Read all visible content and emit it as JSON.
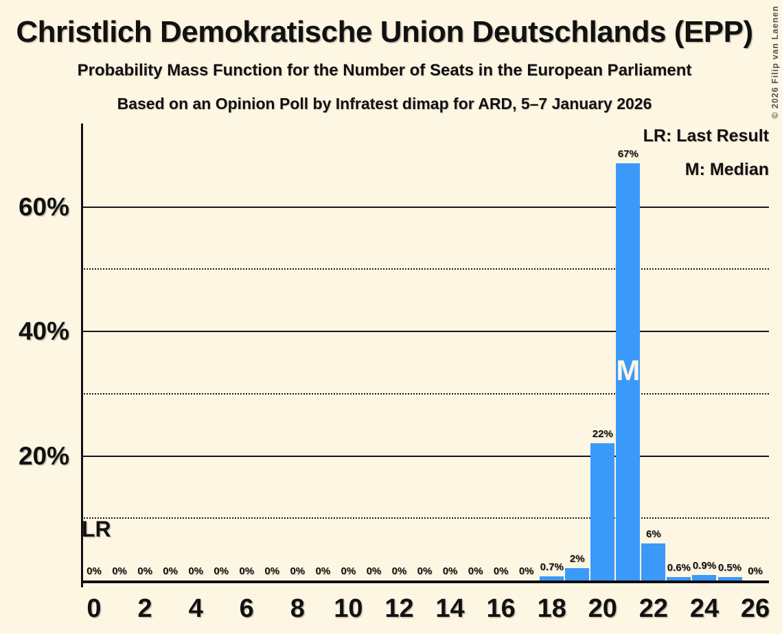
{
  "title": "Christlich Demokratische Union Deutschlands (EPP)",
  "subtitle": "Probability Mass Function for the Number of Seats in the European Parliament",
  "poll_line": "Based on an Opinion Poll by Infratest dimap for ARD, 5–7 January 2026",
  "copyright": "© 2026 Filip van Laenen",
  "legend": {
    "lr": "LR: Last Result",
    "m": "M: Median"
  },
  "lr_label": "LR",
  "median_label": "M",
  "colors": {
    "background": "#FDF6E3",
    "bar": "#3B99FA",
    "text": "#111111",
    "median_letter": "#FDF6E3",
    "copyright": "#55554a"
  },
  "chart_data": {
    "type": "bar",
    "x": [
      0,
      1,
      2,
      3,
      4,
      5,
      6,
      7,
      8,
      9,
      10,
      11,
      12,
      13,
      14,
      15,
      16,
      17,
      18,
      19,
      20,
      21,
      22,
      23,
      24,
      25,
      26
    ],
    "values": [
      0,
      0,
      0,
      0,
      0,
      0,
      0,
      0,
      0,
      0,
      0,
      0,
      0,
      0,
      0,
      0,
      0,
      0,
      0.7,
      2,
      22,
      67,
      6,
      0.6,
      0.9,
      0.5,
      0
    ],
    "labels": [
      "0%",
      "0%",
      "0%",
      "0%",
      "0%",
      "0%",
      "0%",
      "0%",
      "0%",
      "0%",
      "0%",
      "0%",
      "0%",
      "0%",
      "0%",
      "0%",
      "0%",
      "0%",
      "0.7%",
      "2%",
      "22%",
      "67%",
      "6%",
      "0.6%",
      "0.9%",
      "0.5%",
      "0%"
    ],
    "median_seat": 21,
    "x_ticks": [
      0,
      2,
      4,
      6,
      8,
      10,
      12,
      14,
      16,
      18,
      20,
      22,
      24,
      26
    ],
    "ylim": [
      0,
      73
    ],
    "y_solid_gridlines": [
      20,
      40,
      60
    ],
    "y_dotted_gridlines": [
      10,
      30,
      50
    ],
    "y_tick_format": "percent",
    "grid": true,
    "legend_position": "top-right"
  }
}
